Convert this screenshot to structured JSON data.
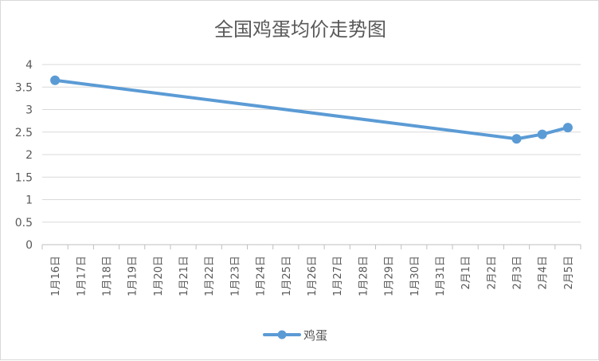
{
  "chart_data": {
    "type": "line",
    "title": "全国鸡蛋均价走势图",
    "xlabel": "",
    "ylabel": "",
    "categories": [
      "1月16日",
      "1月17日",
      "1月18日",
      "1月19日",
      "1月20日",
      "1月21日",
      "1月22日",
      "1月23日",
      "1月24日",
      "1月25日",
      "1月26日",
      "1月27日",
      "1月28日",
      "1月29日",
      "1月30日",
      "1月31日",
      "2月1日",
      "2月2日",
      "2月3日",
      "2月4日",
      "2月5日"
    ],
    "series": [
      {
        "name": "鸡蛋",
        "values": [
          3.65,
          null,
          null,
          null,
          null,
          null,
          null,
          null,
          null,
          null,
          null,
          null,
          null,
          null,
          null,
          null,
          null,
          null,
          2.35,
          2.45,
          2.6
        ],
        "color": "#5b9bd5"
      }
    ],
    "ylim": [
      0,
      4
    ],
    "yticks": [
      "0",
      "0.5",
      "1",
      "1.5",
      "2",
      "2.5",
      "3",
      "3.5",
      "4"
    ],
    "grid": true,
    "legend": "bottom"
  }
}
